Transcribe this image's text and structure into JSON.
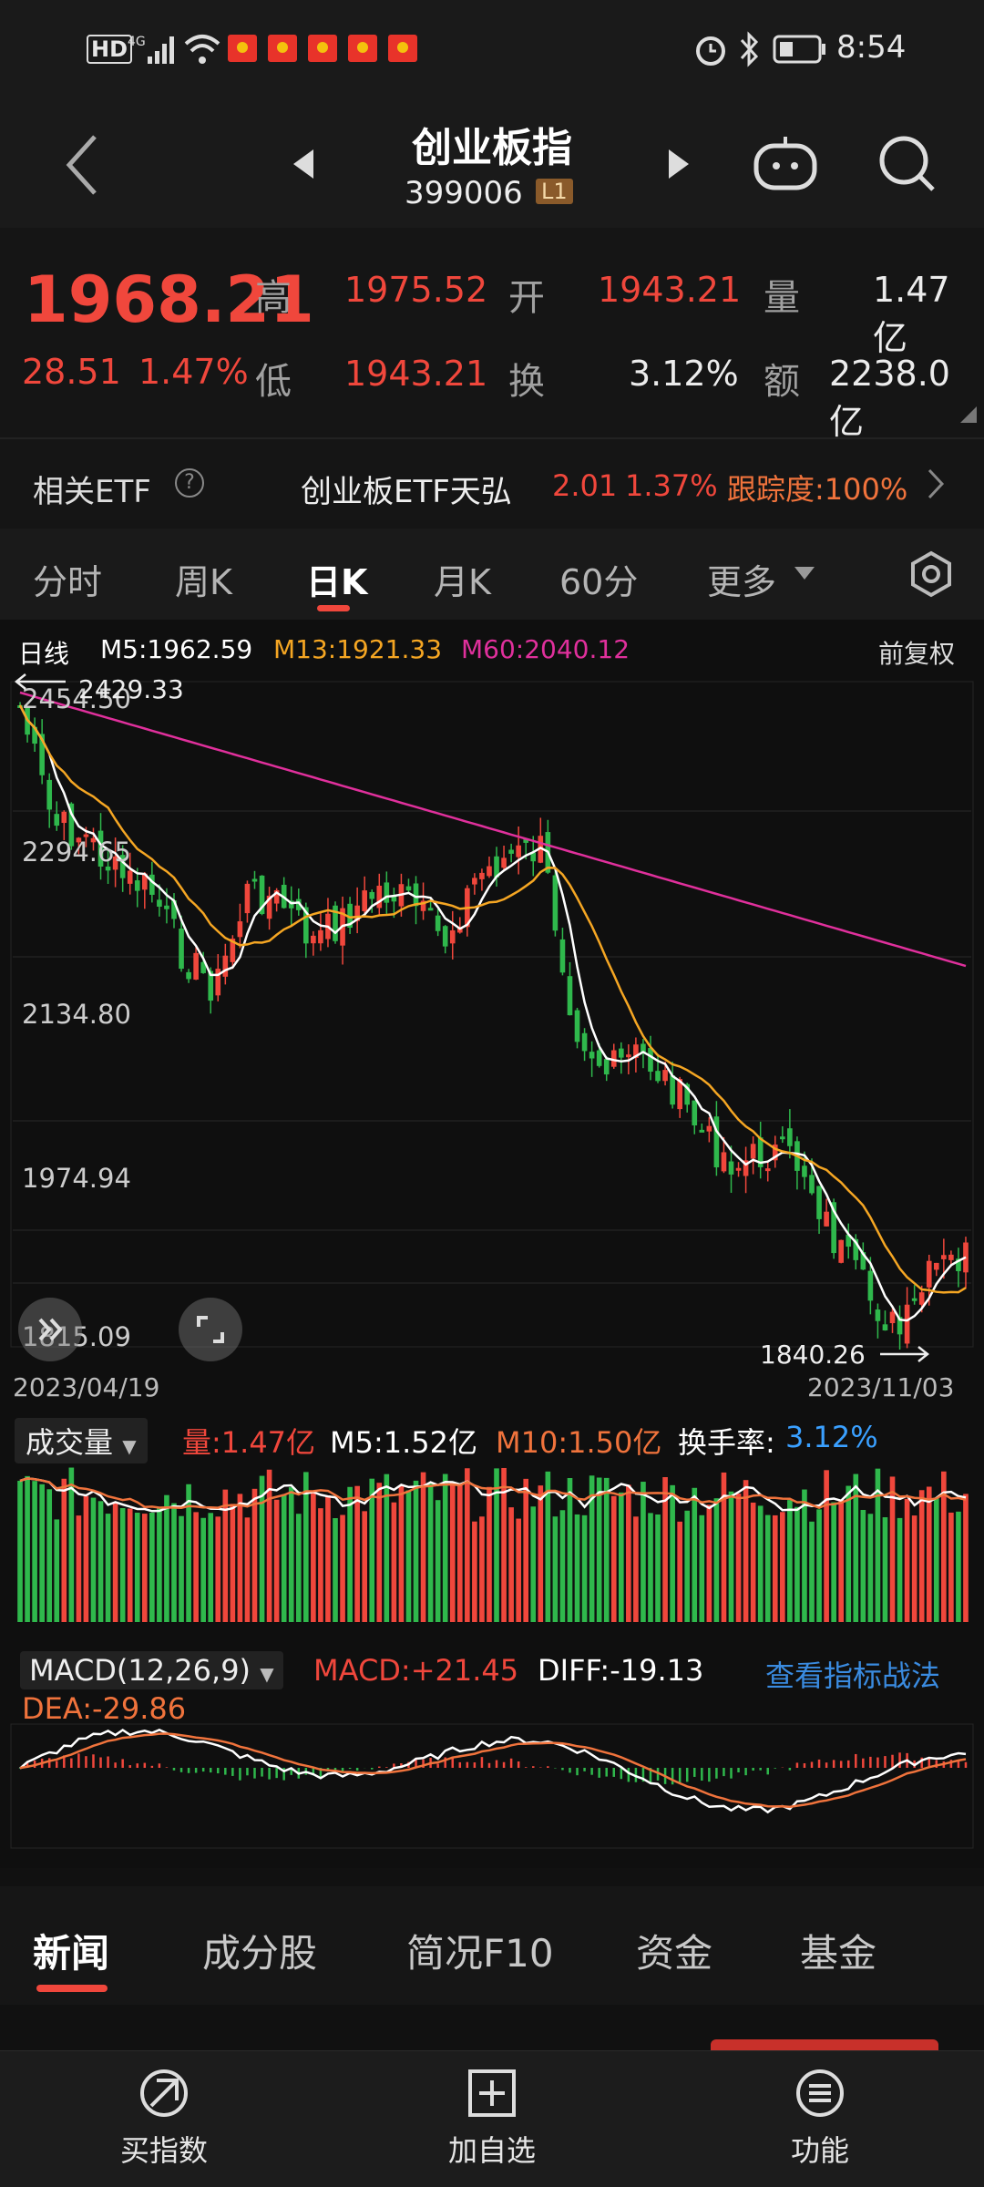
{
  "status_bar": {
    "time": "8:54",
    "left_icons": [
      "hd-icon",
      "signal-4g-icon",
      "wifi-icon"
    ],
    "right_icons": [
      "alarm-icon",
      "bluetooth-icon",
      "battery-icon"
    ]
  },
  "header": {
    "title": "创业板指",
    "code": "399006",
    "level_badge": "L1"
  },
  "quote": {
    "price": "1968.21",
    "change": "28.51",
    "change_pct": "1.47%",
    "high_label": "高",
    "high": "1975.52",
    "open_label": "开",
    "open": "1943.21",
    "volume_label": "量",
    "volume": "1.47亿",
    "low_label": "低",
    "low": "1943.21",
    "turnover_label": "换",
    "turnover": "3.12%",
    "amount_label": "额",
    "amount": "2238.0亿"
  },
  "etf": {
    "label": "相关ETF",
    "name": "创业板ETF天弘",
    "price": "2.01",
    "pct": "1.37%",
    "tracking": "跟踪度:100%"
  },
  "tabs": [
    {
      "label": "分时"
    },
    {
      "label": "周K"
    },
    {
      "label": "日K"
    },
    {
      "label": "月K"
    },
    {
      "label": "60分"
    },
    {
      "label": "更多"
    }
  ],
  "kline": {
    "period_label": "日线",
    "ma5": "M5:1962.59",
    "ma13": "M13:1921.33",
    "ma60": "M60:2040.12",
    "adjust": "前复权",
    "high_marker": "2429.33",
    "low_marker": "1840.26",
    "y_labels": [
      "2454.50",
      "2294.65",
      "2134.80",
      "1974.94",
      "1815.09"
    ],
    "start_date": "2023/04/19",
    "end_date": "2023/11/03",
    "colors": {
      "up": "#f0473c",
      "down": "#2fb84c",
      "ma5": "#ffffff",
      "ma13": "#f5a623",
      "ma60": "#e0309c"
    }
  },
  "volume": {
    "selector": "成交量",
    "vol": "量:1.47亿",
    "m5": "M5:1.52亿",
    "m10": "M10:1.50亿",
    "turnover": "换手率:",
    "turnover_val": "3.12%"
  },
  "macd": {
    "selector": "MACD(12,26,9)",
    "macd": "MACD:+21.45",
    "diff": "DIFF:-19.13",
    "link": "查看指标战法",
    "dea": "DEA:-29.86"
  },
  "news_tabs": [
    {
      "label": "新闻"
    },
    {
      "label": "成分股"
    },
    {
      "label": "简况F10"
    },
    {
      "label": "资金"
    },
    {
      "label": "基金"
    }
  ],
  "bottom_bar": [
    {
      "label": "买指数",
      "icon": "buy-index-icon"
    },
    {
      "label": "加自选",
      "icon": "add-watchlist-icon"
    },
    {
      "label": "功能",
      "icon": "menu-icon"
    }
  ]
}
